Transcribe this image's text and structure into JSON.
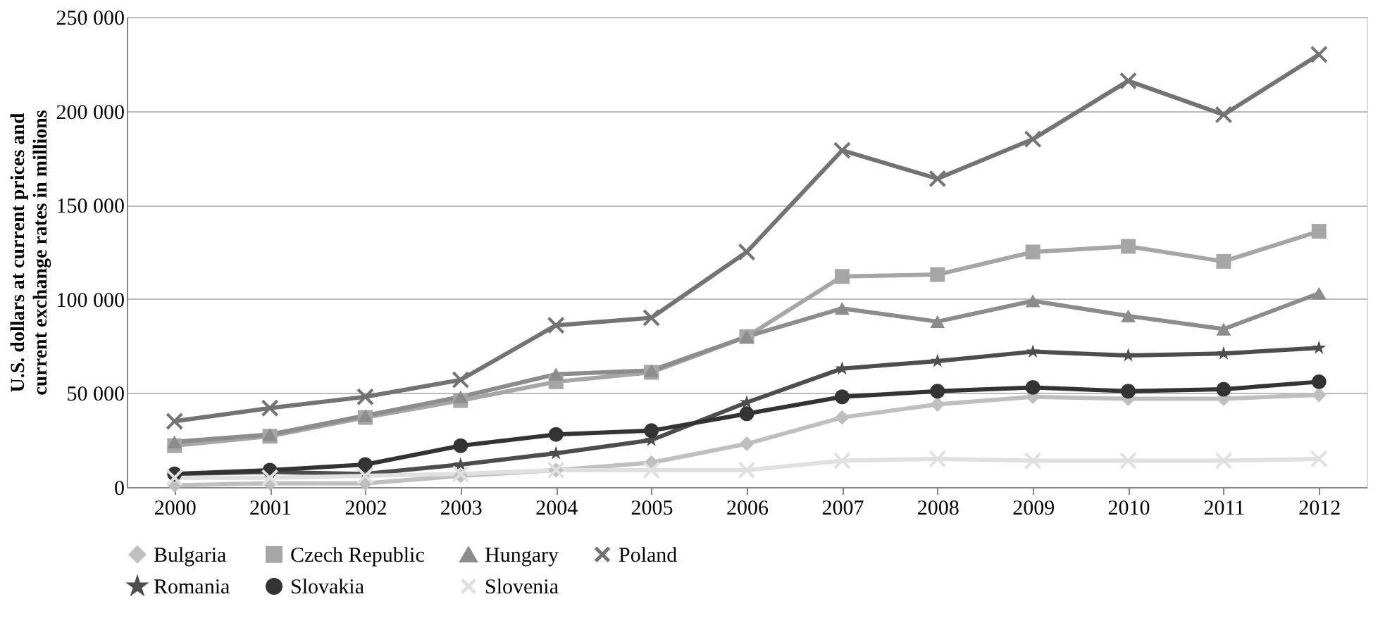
{
  "chart_data": {
    "type": "line",
    "ylabel": "U.S. dollars at current prices and current exchange rates in millions",
    "line_style": "solid",
    "categories": [
      "2000",
      "2001",
      "2002",
      "2003",
      "2004",
      "2005",
      "2006",
      "2007",
      "2008",
      "2009",
      "2010",
      "2011",
      "2012"
    ],
    "ylim": [
      0,
      250000
    ],
    "yticks": [
      0,
      {
        "value": 50000,
        "label": "50 000"
      },
      {
        "value": 100000,
        "label": "100 000"
      },
      {
        "value": 150000,
        "label": "150 000"
      },
      {
        "value": 200000,
        "label": "200 000"
      },
      {
        "value": 250000,
        "label": "250 000"
      }
    ],
    "grid": "y",
    "legend": "bottom",
    "series": [
      {
        "name": "Bulgaria",
        "color": "#bfbfbf",
        "marker": "diamond",
        "values": [
          1000,
          2000,
          2000,
          6000,
          9000,
          13000,
          23000,
          37000,
          44000,
          48000,
          47000,
          47000,
          49000
        ]
      },
      {
        "name": "Czech Republic",
        "color": "#a6a6a6",
        "marker": "square",
        "values": [
          22000,
          27000,
          37000,
          46000,
          56000,
          61000,
          80000,
          112000,
          113000,
          125000,
          128000,
          120000,
          136000
        ]
      },
      {
        "name": "Hungary",
        "color": "#8c8c8c",
        "marker": "triangle",
        "values": [
          24000,
          28000,
          38000,
          48000,
          60000,
          62000,
          80000,
          95000,
          88000,
          99000,
          91000,
          84000,
          103000
        ]
      },
      {
        "name": "Poland",
        "color": "#737373",
        "marker": "cross",
        "values": [
          35000,
          42000,
          48000,
          57000,
          86000,
          90000,
          125000,
          179000,
          164000,
          185000,
          216000,
          198000,
          230000
        ]
      },
      {
        "name": "Romania",
        "color": "#4d4d4d",
        "marker": "star",
        "values": [
          7000,
          8000,
          7000,
          12000,
          18000,
          25000,
          45000,
          63000,
          67000,
          72000,
          70000,
          71000,
          74000
        ]
      },
      {
        "name": "Slovakia",
        "color": "#333333",
        "marker": "circle",
        "values": [
          7000,
          9000,
          12000,
          22000,
          28000,
          30000,
          39000,
          48000,
          51000,
          53000,
          51000,
          52000,
          56000
        ]
      },
      {
        "name": "Slovenia",
        "color": "#e0e0e0",
        "marker": "cross",
        "values": [
          5000,
          5000,
          6000,
          7000,
          9000,
          9000,
          9000,
          14000,
          15000,
          14000,
          14000,
          14000,
          15000
        ]
      }
    ]
  }
}
